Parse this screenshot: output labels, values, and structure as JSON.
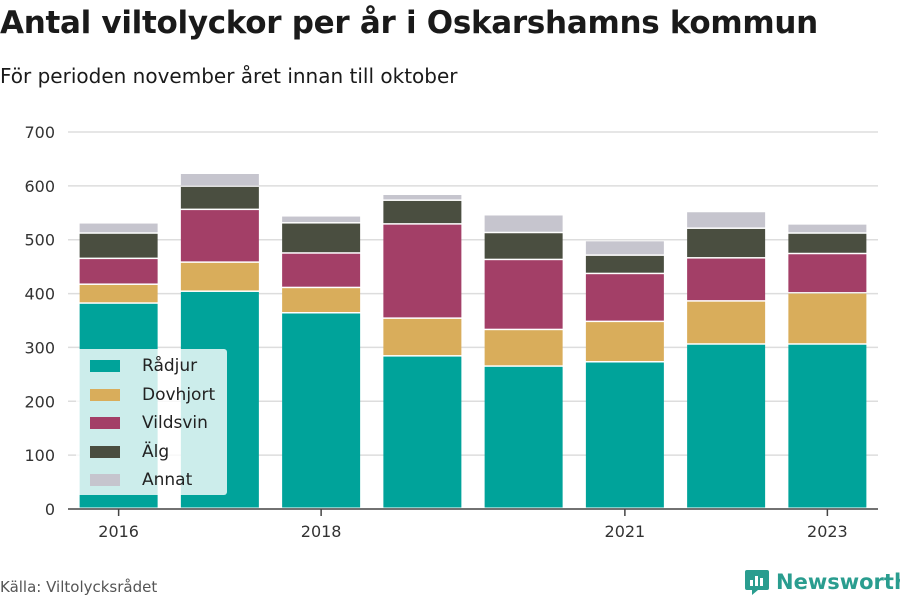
{
  "title": "Antal viltolyckor per år i Oskarshamns kommun",
  "subtitle": "För perioden november året innan till oktober",
  "source": "Källa: Viltolycksrådet",
  "brand": "Newsworthy",
  "brand_icon": "newsworthy-logo-icon",
  "chart_data": {
    "type": "bar",
    "stacked": true,
    "x": [
      2016,
      2017,
      2018,
      2019,
      2020,
      2021,
      2022,
      2023
    ],
    "x_tick_labels": [
      "2016",
      "2018",
      "2021",
      "2023"
    ],
    "x_tick_values": [
      2016,
      2018,
      2021,
      2023
    ],
    "ylim": [
      0,
      700
    ],
    "yticks": [
      0,
      100,
      200,
      300,
      400,
      500,
      600,
      700
    ],
    "grid": true,
    "legend_position": "bottom-left",
    "series": [
      {
        "name": "Rådjur",
        "color": "#00a39a",
        "values": [
          381,
          403,
          363,
          283,
          264,
          272,
          305,
          305
        ]
      },
      {
        "name": "Dovhjort",
        "color": "#d9ad5b",
        "values": [
          35,
          54,
          47,
          70,
          68,
          75,
          80,
          95
        ]
      },
      {
        "name": "Vildsvin",
        "color": "#a33f67",
        "values": [
          48,
          98,
          64,
          175,
          130,
          89,
          80,
          73
        ]
      },
      {
        "name": "Älg",
        "color": "#4a4e40",
        "values": [
          47,
          43,
          56,
          44,
          50,
          34,
          55,
          38
        ]
      },
      {
        "name": "Annat",
        "color": "#c6c5ce",
        "values": [
          19,
          24,
          13,
          11,
          33,
          27,
          31,
          17
        ]
      }
    ]
  }
}
